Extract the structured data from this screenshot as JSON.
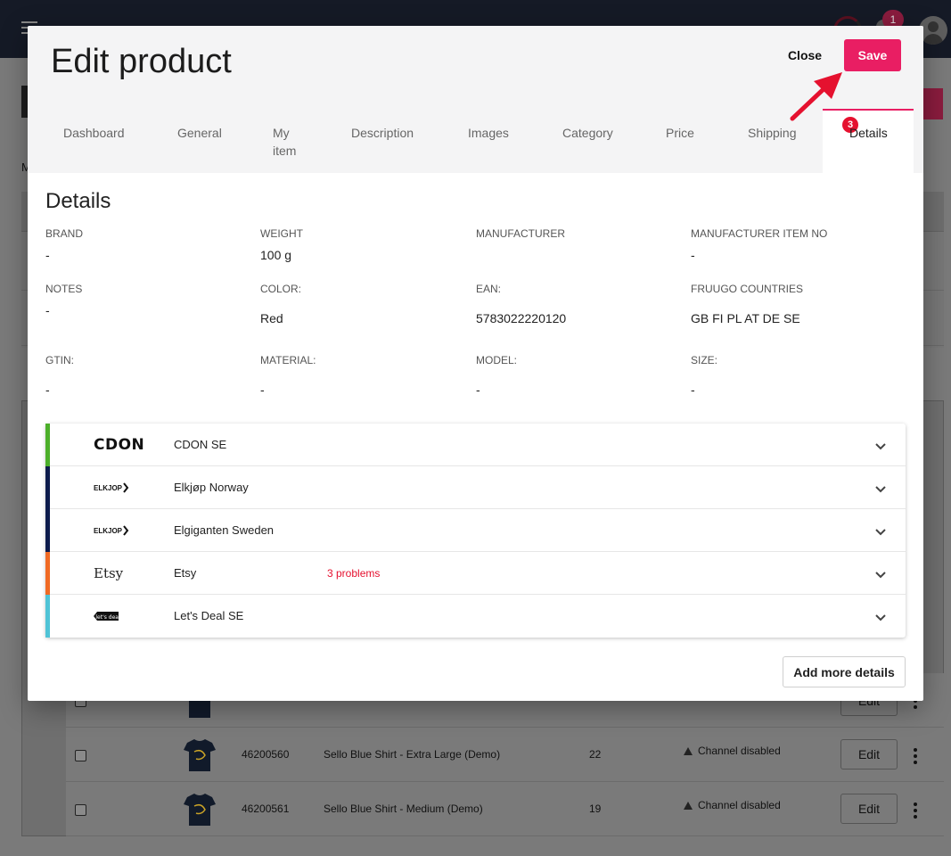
{
  "background": {
    "top_badge_count": "1",
    "heading_letter": "M",
    "table_rows": [
      {
        "sku": "46200560",
        "name": "Sello Blue Shirt - Extra Large (Demo)",
        "qty": "22",
        "status": "Channel disabled",
        "edit_label": "Edit"
      },
      {
        "sku": "46200561",
        "name": "Sello Blue Shirt - Medium (Demo)",
        "qty": "19",
        "status": "Channel disabled",
        "edit_label": "Edit"
      }
    ]
  },
  "modal": {
    "title": "Edit product",
    "close_label": "Close",
    "save_label": "Save",
    "tabs": [
      {
        "label": "Dashboard"
      },
      {
        "label": "General"
      },
      {
        "label": "My item"
      },
      {
        "label": "Description"
      },
      {
        "label": "Images"
      },
      {
        "label": "Category"
      },
      {
        "label": "Price"
      },
      {
        "label": "Shipping"
      },
      {
        "label": "Details",
        "badge": "3",
        "active": true
      }
    ],
    "details": {
      "section_title": "Details",
      "fields": [
        {
          "label": "BRAND",
          "value": "-"
        },
        {
          "label": "WEIGHT",
          "value": "100 g"
        },
        {
          "label": "MANUFACTURER",
          "value": ""
        },
        {
          "label": "MANUFACTURER ITEM NO",
          "value": "-"
        },
        {
          "label": "NOTES",
          "value": "-"
        },
        {
          "label": "COLOR:",
          "value": "Red"
        },
        {
          "label": "EAN:",
          "value": "5783022220120"
        },
        {
          "label": "FRUUGO COUNTRIES",
          "value": "GB FI PL AT DE SE"
        },
        {
          "label": "GTIN:",
          "value": "-"
        },
        {
          "label": "MATERIAL:",
          "value": "-"
        },
        {
          "label": "MODEL:",
          "value": "-"
        },
        {
          "label": "SIZE:",
          "value": "-"
        }
      ]
    },
    "channels": [
      {
        "logo": "CDON",
        "name": "CDON SE",
        "accent": "#4caf2a",
        "problems": ""
      },
      {
        "logo": "ELKJOP",
        "name": "Elkjøp Norway",
        "accent": "#0d1b4c",
        "problems": ""
      },
      {
        "logo": "ELKJOP",
        "name": "Elgiganten Sweden",
        "accent": "#0d1b4c",
        "problems": ""
      },
      {
        "logo": "Etsy",
        "name": "Etsy",
        "accent": "#f06a24",
        "problems": "3 problems"
      },
      {
        "logo": "let's deal",
        "name": "Let's Deal SE",
        "accent": "#4fc3d6",
        "problems": ""
      }
    ],
    "add_more_label": "Add more details"
  },
  "colors": {
    "primary": "#e91e63",
    "error": "#e5112f",
    "topbar": "#151a26"
  },
  "icons": [
    "menu-icon",
    "notification-bell-icon",
    "user-avatar-icon",
    "chevron-down-icon",
    "warning-icon",
    "more-vert-icon",
    "tshirt-thumbnail"
  ]
}
